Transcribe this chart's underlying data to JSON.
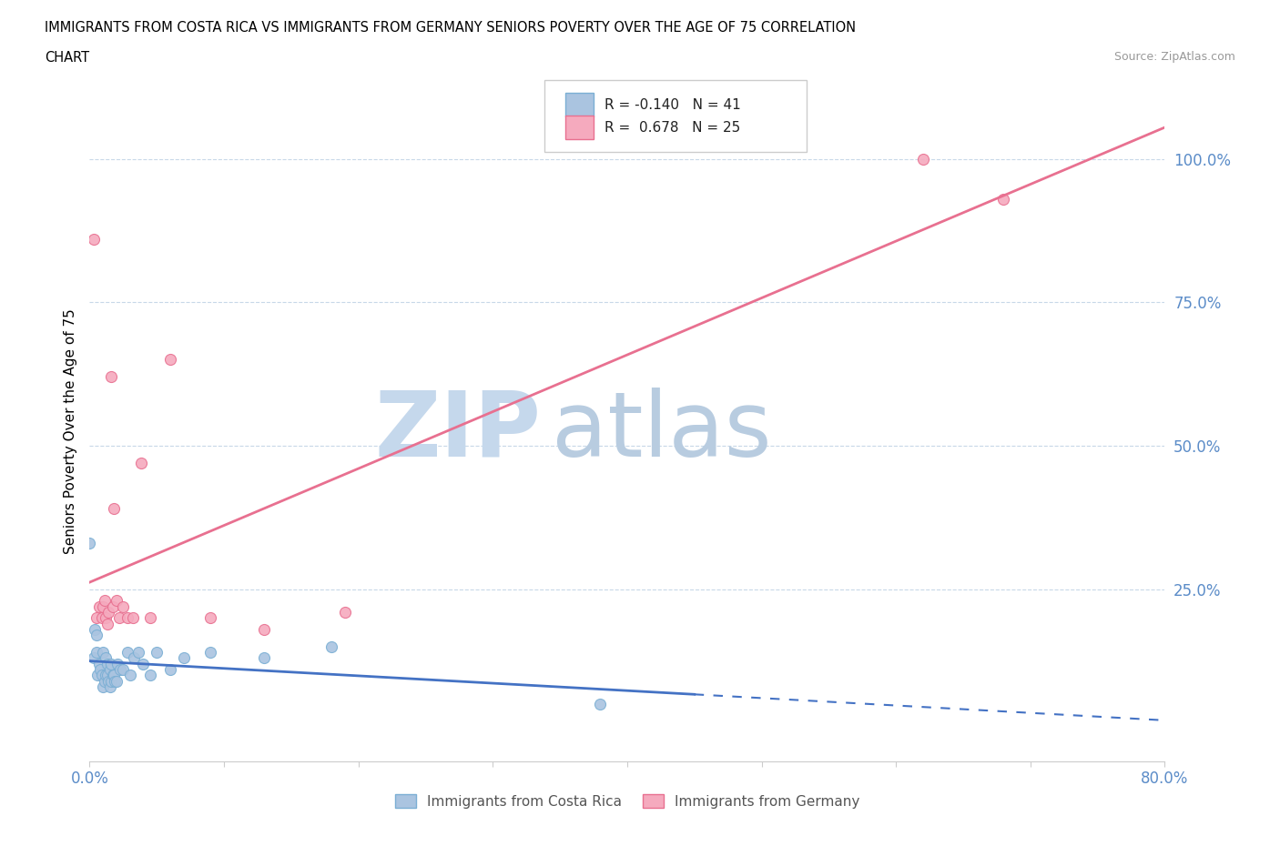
{
  "title_line1": "IMMIGRANTS FROM COSTA RICA VS IMMIGRANTS FROM GERMANY SENIORS POVERTY OVER THE AGE OF 75 CORRELATION",
  "title_line2": "CHART",
  "source": "Source: ZipAtlas.com",
  "ylabel": "Seniors Poverty Over the Age of 75",
  "xlim": [
    0.0,
    0.8
  ],
  "ylim": [
    -0.05,
    1.1
  ],
  "xticks": [
    0.0,
    0.1,
    0.2,
    0.3,
    0.4,
    0.5,
    0.6,
    0.7,
    0.8
  ],
  "xticklabels": [
    "0.0%",
    "",
    "",
    "",
    "",
    "",
    "",
    "",
    "80.0%"
  ],
  "ytick_positions": [
    0.0,
    0.25,
    0.5,
    0.75,
    1.0
  ],
  "ytick_labels": [
    "",
    "25.0%",
    "50.0%",
    "75.0%",
    "100.0%"
  ],
  "costa_rica_color": "#aac4e0",
  "germany_color": "#f5aabe",
  "costa_rica_edge": "#7bafd4",
  "germany_edge": "#e87090",
  "costa_rica_line_color": "#4472c4",
  "germany_line_color": "#e87090",
  "watermark_zip": "ZIP",
  "watermark_atlas": "atlas",
  "watermark_color_zip": "#c5d8ec",
  "watermark_color_atlas": "#b8cce0",
  "legend_r1": "R = -0.140",
  "legend_n1": "N = 41",
  "legend_r2": "R =  0.678",
  "legend_n2": "N = 25",
  "legend_label1": "Immigrants from Costa Rica",
  "legend_label2": "Immigrants from Germany",
  "grid_color": "#c8d8e8",
  "costa_rica_x": [
    0.0,
    0.003,
    0.004,
    0.005,
    0.005,
    0.006,
    0.007,
    0.008,
    0.009,
    0.01,
    0.01,
    0.011,
    0.012,
    0.012,
    0.013,
    0.013,
    0.014,
    0.015,
    0.015,
    0.016,
    0.016,
    0.017,
    0.018,
    0.019,
    0.02,
    0.021,
    0.023,
    0.025,
    0.028,
    0.03,
    0.033,
    0.036,
    0.04,
    0.045,
    0.05,
    0.06,
    0.07,
    0.09,
    0.13,
    0.18,
    0.38
  ],
  "costa_rica_y": [
    0.33,
    0.13,
    0.18,
    0.14,
    0.17,
    0.1,
    0.12,
    0.11,
    0.1,
    0.08,
    0.14,
    0.09,
    0.1,
    0.13,
    0.1,
    0.12,
    0.09,
    0.08,
    0.11,
    0.09,
    0.12,
    0.1,
    0.1,
    0.09,
    0.09,
    0.12,
    0.11,
    0.11,
    0.14,
    0.1,
    0.13,
    0.14,
    0.12,
    0.1,
    0.14,
    0.11,
    0.13,
    0.14,
    0.13,
    0.15,
    0.05
  ],
  "germany_x": [
    0.003,
    0.005,
    0.007,
    0.009,
    0.01,
    0.011,
    0.012,
    0.013,
    0.014,
    0.016,
    0.017,
    0.018,
    0.02,
    0.022,
    0.025,
    0.028,
    0.032,
    0.038,
    0.045,
    0.06,
    0.09,
    0.13,
    0.19,
    0.62,
    0.68
  ],
  "germany_y": [
    0.86,
    0.2,
    0.22,
    0.2,
    0.22,
    0.23,
    0.2,
    0.19,
    0.21,
    0.62,
    0.22,
    0.39,
    0.23,
    0.2,
    0.22,
    0.2,
    0.2,
    0.47,
    0.2,
    0.65,
    0.2,
    0.18,
    0.21,
    1.0,
    0.93
  ],
  "marker_size": 75
}
